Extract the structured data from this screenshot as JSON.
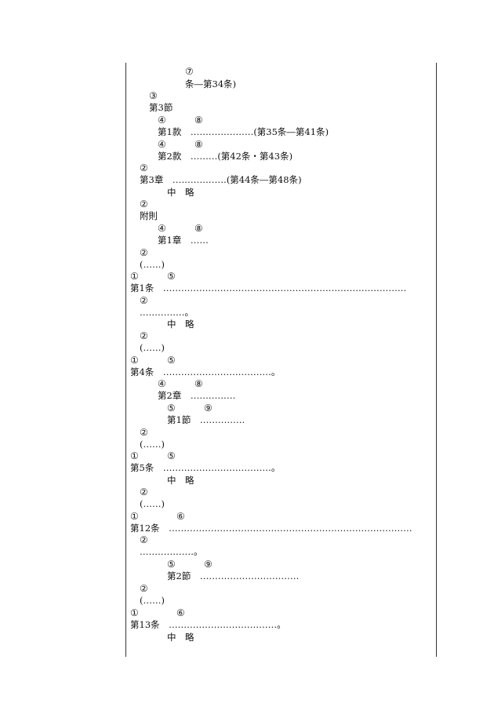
{
  "lines": [
    {
      "m1": "⑦",
      "m2": "",
      "text": "条―第34条)"
    },
    {
      "m1": "③",
      "m2": "",
      "text": "第3節"
    },
    {
      "m1": "④",
      "m2": "⑧",
      "text": "第1款　…………………(第35条―第41条)"
    },
    {
      "m1": "④",
      "m2": "⑧",
      "text": "第2款　………(第42条・第43条)"
    },
    {
      "m1": "②",
      "m2": "",
      "text": "第3章　………………(第44条―第48条)"
    },
    {
      "m1": "",
      "m2": "",
      "text": "中　略"
    },
    {
      "m1": "②",
      "m2": "",
      "text": "附則"
    },
    {
      "m1": "④",
      "m2": "⑧",
      "text": "第1章　……"
    },
    {
      "m1": "②",
      "m2": "",
      "text": "(……)"
    },
    {
      "m1": "①",
      "m2": "⑤",
      "text": "第1条　………………………………………………………………………"
    },
    {
      "m1": "②",
      "m2": "",
      "text": "……………。"
    },
    {
      "m1": "",
      "m2": "",
      "text": "中　略"
    },
    {
      "m1": "②",
      "m2": "",
      "text": "(……)"
    },
    {
      "m1": "①",
      "m2": "⑤",
      "text": "第4条　………………………………。"
    },
    {
      "m1": "④",
      "m2": "⑧",
      "text": "第2章　……………"
    },
    {
      "m1": "⑤",
      "m2": "⑨",
      "text": "第1節　……………"
    },
    {
      "m1": "②",
      "m2": "",
      "text": "(……)"
    },
    {
      "m1": "①",
      "m2": "⑤",
      "text": "第5条　………………………………。"
    },
    {
      "m1": "",
      "m2": "",
      "text": "中　略"
    },
    {
      "m1": "②",
      "m2": "",
      "text": "(……)"
    },
    {
      "m1": "①",
      "m2": "⑥",
      "text": "第12条　………………………………………………………………………"
    },
    {
      "m1": "②",
      "m2": "",
      "text": "………………。"
    },
    {
      "m1": "⑤",
      "m2": "⑨",
      "text": "第2節　……………………………"
    },
    {
      "m1": "②",
      "m2": "",
      "text": "(……)"
    },
    {
      "m1": "①",
      "m2": "⑥",
      "text": "第13条　………………………………。"
    },
    {
      "m1": "",
      "m2": "",
      "text": "中　略"
    }
  ]
}
